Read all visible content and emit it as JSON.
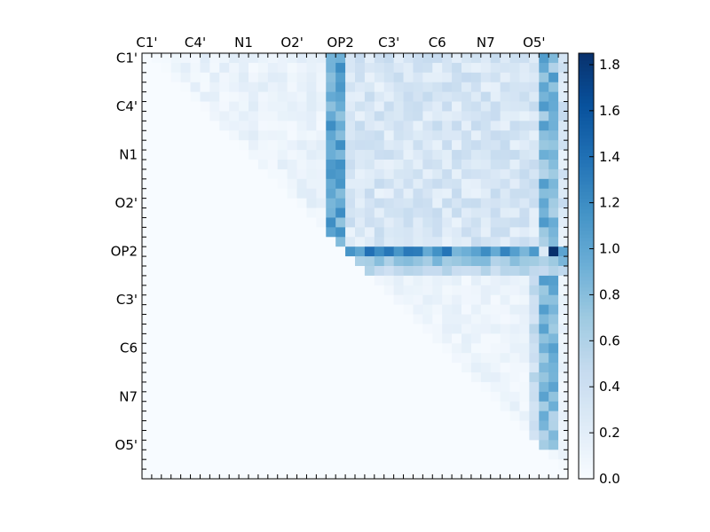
{
  "chart_data": {
    "type": "heatmap",
    "title": "",
    "xlabel": "",
    "ylabel": "",
    "size": 44,
    "colormap": "Blues",
    "vmin": 0.0,
    "vmax": 1.85,
    "x_tick_labels": [
      "C1'",
      "C4'",
      "N1",
      "O2'",
      "OP2",
      "C3'",
      "C6",
      "N7",
      "O5'"
    ],
    "y_tick_labels": [
      "C1'",
      "C4'",
      "N1",
      "O2'",
      "OP2",
      "C3'",
      "C6",
      "N7",
      "O5'"
    ],
    "tick_label_indices": [
      0,
      5,
      10,
      15,
      20,
      25,
      30,
      35,
      40
    ],
    "colorbar_ticks": [
      0.0,
      0.2,
      0.4,
      0.6,
      0.8,
      1.0,
      1.2,
      1.4,
      1.6,
      1.8
    ],
    "colorbar_tick_labels": [
      "0.0",
      "0.2",
      "0.4",
      "0.6",
      "0.8",
      "1.0",
      "1.2",
      "1.4",
      "1.6",
      "1.8"
    ],
    "bright_rows": [
      20
    ],
    "bright_cols": [
      19,
      20,
      41,
      42
    ],
    "notes_values": {
      "row_20_band_values": [
        0.85,
        0.9,
        0.95,
        1.1,
        1.2,
        1.3,
        1.4,
        1.5,
        1.85
      ],
      "col_19_20_values": [
        0.8,
        1.0,
        1.1,
        1.2
      ],
      "col_41_42_values": [
        0.9,
        1.0,
        1.2,
        1.4
      ]
    }
  }
}
